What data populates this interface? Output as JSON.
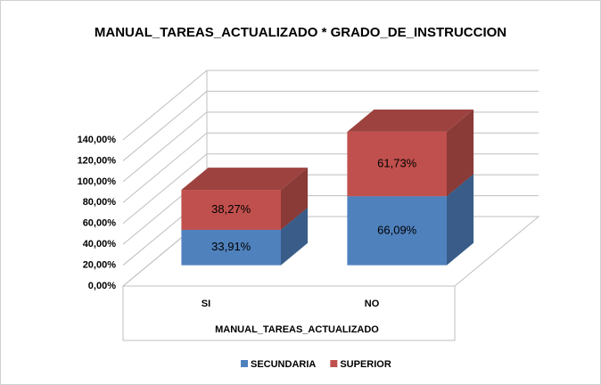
{
  "chart_data": {
    "type": "bar3d_stacked",
    "title": "MANUAL_TAREAS_ACTUALIZADO * GRADO_DE_INSTRUCCION",
    "x_label": "MANUAL_TAREAS_ACTUALIZADO",
    "categories": [
      "SI",
      "NO"
    ],
    "series": [
      {
        "name": "SECUNDARIA",
        "color": "#4f81bd",
        "values": [
          33.91,
          66.09
        ],
        "value_labels": [
          "33,91%",
          "66,09%"
        ]
      },
      {
        "name": "SUPERIOR",
        "color": "#c0504d",
        "values": [
          38.27,
          61.73
        ],
        "value_labels": [
          "38,27%",
          "61,73%"
        ]
      }
    ],
    "ylim": [
      0,
      140
    ],
    "yticks": [
      {
        "value": 0,
        "label": "0,00%"
      },
      {
        "value": 20,
        "label": "20,00%"
      },
      {
        "value": 40,
        "label": "40,00%"
      },
      {
        "value": 60,
        "label": "60,00%"
      },
      {
        "value": 80,
        "label": "80,00%"
      },
      {
        "value": 100,
        "label": "100,00%"
      },
      {
        "value": 120,
        "label": "120,00%"
      },
      {
        "value": 140,
        "label": "140,00%"
      }
    ],
    "grid": true,
    "legend": "bottom"
  }
}
